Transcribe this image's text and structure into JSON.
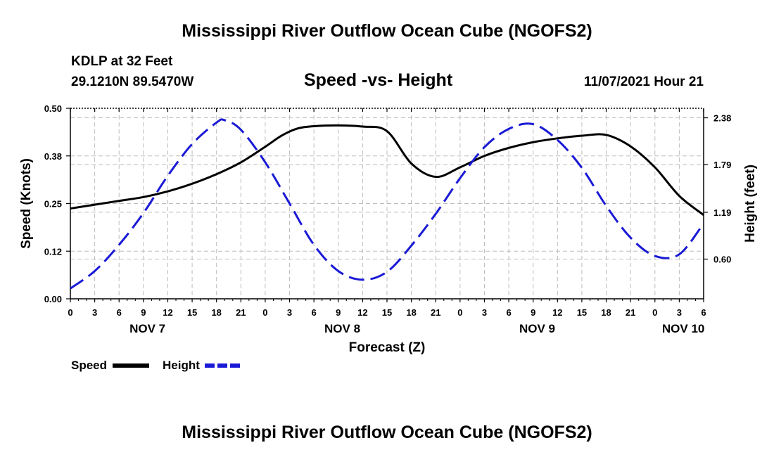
{
  "page": {
    "title": "Mississippi River Outflow Ocean Cube (NGOFS2)",
    "footer_title": "Mississippi River Outflow Ocean Cube (NGOFS2)",
    "station": "KDLP at 32 Feet",
    "coords": "29.1210N  89.5470W",
    "datetime": "11/07/2021 Hour 21"
  },
  "chart_data": {
    "type": "line",
    "title": "Speed -vs- Height",
    "xlabel": "Forecast (Z)",
    "ylabel": "Speed (Knots)",
    "y2label": "Height (feet)",
    "xlim": [
      0,
      78
    ],
    "ylim": [
      0,
      0.5
    ],
    "y2lim": [
      0.1,
      2.5
    ],
    "x_ticks": [
      0,
      3,
      6,
      9,
      12,
      15,
      18,
      21,
      24,
      27,
      30,
      33,
      36,
      39,
      42,
      45,
      48,
      51,
      54,
      57,
      60,
      63,
      66,
      69,
      72,
      75,
      78
    ],
    "x_tick_labels": [
      "0",
      "3",
      "6",
      "9",
      "12",
      "15",
      "18",
      "21",
      "0",
      "3",
      "6",
      "9",
      "12",
      "15",
      "18",
      "21",
      "0",
      "3",
      "6",
      "9",
      "12",
      "15",
      "18",
      "21",
      "0",
      "3",
      "6"
    ],
    "day_labels": [
      {
        "label": "NOV 7",
        "x": 9.5
      },
      {
        "label": "NOV 8",
        "x": 33.5
      },
      {
        "label": "NOV 9",
        "x": 57.5
      },
      {
        "label": "NOV 10",
        "x": 75.5
      }
    ],
    "y_ticks": [
      0.0,
      0.125,
      0.25,
      0.375,
      0.5
    ],
    "y_tick_labels": [
      "0.00",
      "0.12",
      "0.25",
      "0.38",
      "0.50"
    ],
    "y2_ticks": [
      0.6,
      1.19,
      1.79,
      2.38
    ],
    "y2_tick_labels": [
      "0.60",
      "1.19",
      "1.79",
      "2.38"
    ],
    "grid": true,
    "series": [
      {
        "name": "Speed",
        "axis": "left",
        "color": "#000000",
        "style": "solid",
        "x": [
          0,
          3,
          6,
          9,
          12,
          15,
          18,
          21,
          24,
          26,
          28,
          30,
          33,
          36,
          39,
          42,
          45,
          48,
          51,
          54,
          57,
          60,
          63,
          66,
          69,
          72,
          75,
          78
        ],
        "values": [
          0.237,
          0.247,
          0.257,
          0.267,
          0.282,
          0.302,
          0.327,
          0.358,
          0.399,
          0.428,
          0.447,
          0.453,
          0.455,
          0.452,
          0.44,
          0.355,
          0.32,
          0.345,
          0.375,
          0.396,
          0.411,
          0.421,
          0.428,
          0.43,
          0.4,
          0.345,
          0.27,
          0.22
        ]
      },
      {
        "name": "Height",
        "axis": "right",
        "color": "#1a1ad6",
        "style": "dashed",
        "x": [
          0,
          3,
          6,
          9,
          12,
          15,
          18,
          19,
          21,
          24,
          27,
          30,
          33,
          36,
          39,
          42,
          45,
          48,
          51,
          54,
          57,
          60,
          63,
          66,
          69,
          72,
          75,
          78
        ],
        "values": [
          0.23,
          0.45,
          0.78,
          1.18,
          1.65,
          2.05,
          2.32,
          2.35,
          2.23,
          1.82,
          1.3,
          0.78,
          0.45,
          0.34,
          0.44,
          0.77,
          1.17,
          1.62,
          2.01,
          2.24,
          2.3,
          2.1,
          1.75,
          1.27,
          0.87,
          0.64,
          0.66,
          1.05
        ]
      }
    ],
    "legend": [
      {
        "label": "Speed",
        "color": "#000000",
        "style": "solid"
      },
      {
        "label": "Height",
        "color": "#1a1ad6",
        "style": "dashed"
      }
    ]
  }
}
